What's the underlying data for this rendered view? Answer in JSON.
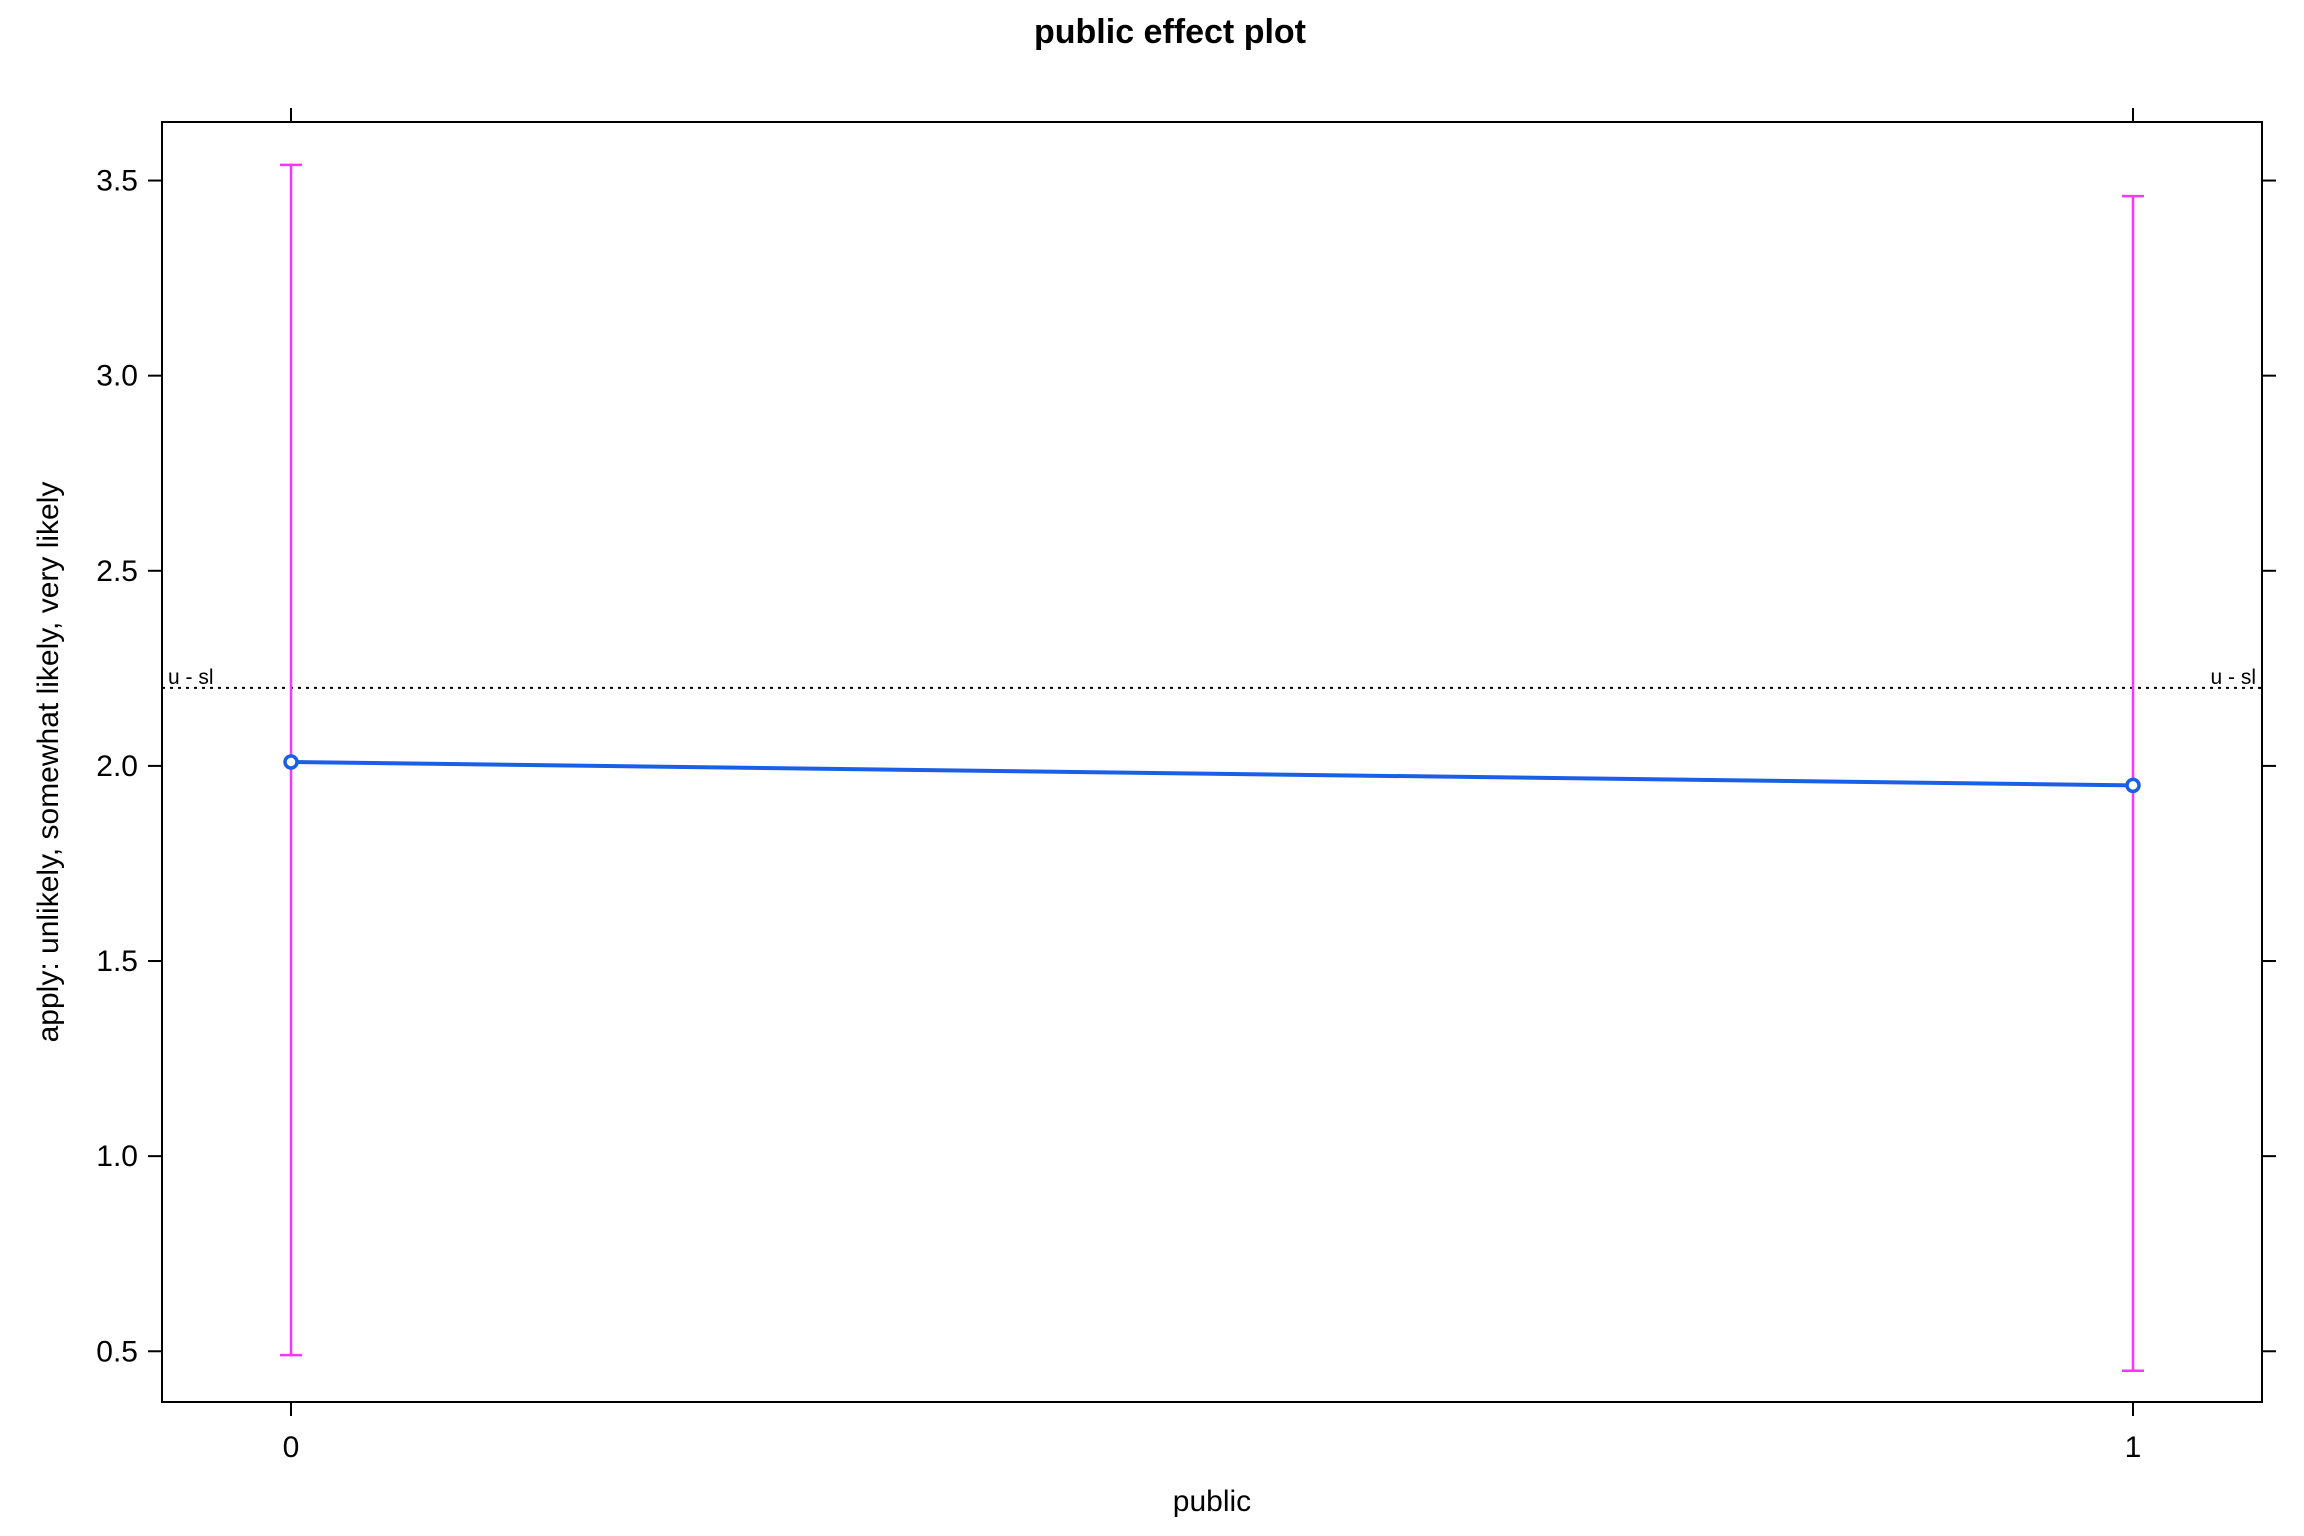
{
  "chart_data": {
    "type": "line",
    "title": "public effect plot",
    "xlabel": "public",
    "ylabel": "apply: unlikely, somewhat likely, very likely",
    "categories": [
      "0",
      "1"
    ],
    "y_ticks": [
      "0.5",
      "1.0",
      "1.5",
      "2.0",
      "2.5",
      "3.0",
      "3.5"
    ],
    "ylim": [
      0.37,
      3.65
    ],
    "series": [
      {
        "values": [
          2.01,
          1.95
        ],
        "lower": [
          0.49,
          0.45
        ],
        "upper": [
          3.54,
          3.46
        ],
        "color": "#1a5fe6",
        "ci_color": "#ff33ff"
      }
    ],
    "threshold": {
      "value": 2.2,
      "label_left": "u - sl",
      "label_right": "u - sl"
    },
    "grid": false,
    "legend": "none"
  }
}
